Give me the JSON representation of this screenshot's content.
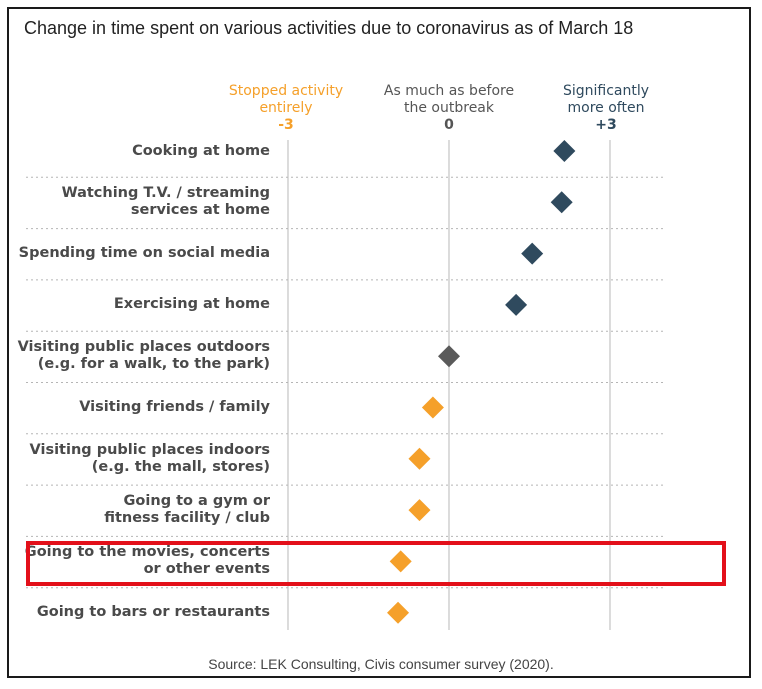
{
  "title": "Change in time spent on various activities due to coronavirus as of March 18",
  "source": "Source: LEK Consulting, Civis consumer survey (2020).",
  "colors": {
    "positive": "#2f4a5e",
    "neutral": "#5a5a5a",
    "negative": "#f5a02a",
    "highlight": "#e3101a",
    "grid": "#c8c8c8"
  },
  "headers": [
    {
      "text_line1": "Stopped activity",
      "text_line2": "entirely",
      "tick": "-3",
      "color": "#f5a02a"
    },
    {
      "text_line1": "As much as before",
      "text_line2": "the outbreak",
      "tick": "0",
      "color": "#555555"
    },
    {
      "text_line1": "Significantly",
      "text_line2": "more often",
      "tick": "+3",
      "color": "#2f4a5e"
    }
  ],
  "chart_data": {
    "type": "scatter",
    "title": "Change in time spent on various activities due to coronavirus as of March 18",
    "xlim": [
      -3,
      3
    ],
    "x_ticks": [
      -3,
      0,
      3
    ],
    "categories": [
      [
        "Cooking at home"
      ],
      [
        "Watching T.V. / streaming",
        "services at home"
      ],
      [
        "Spending time on social media"
      ],
      [
        "Exercising at home"
      ],
      [
        "Visiting public places outdoors",
        "(e.g. for a walk, to the park)"
      ],
      [
        "Visiting friends / family"
      ],
      [
        "Visiting public places indoors",
        "(e.g. the mall, stores)"
      ],
      [
        "Going to a gym or",
        "fitness facility / club"
      ],
      [
        "Going to the movies, concerts",
        "or other events"
      ],
      [
        "Going to bars or restaurants"
      ]
    ],
    "values": [
      2.15,
      2.1,
      1.55,
      1.25,
      0.0,
      -0.3,
      -0.55,
      -0.55,
      -0.9,
      -0.95
    ],
    "highlighted_category_index": 8,
    "grid": true
  }
}
